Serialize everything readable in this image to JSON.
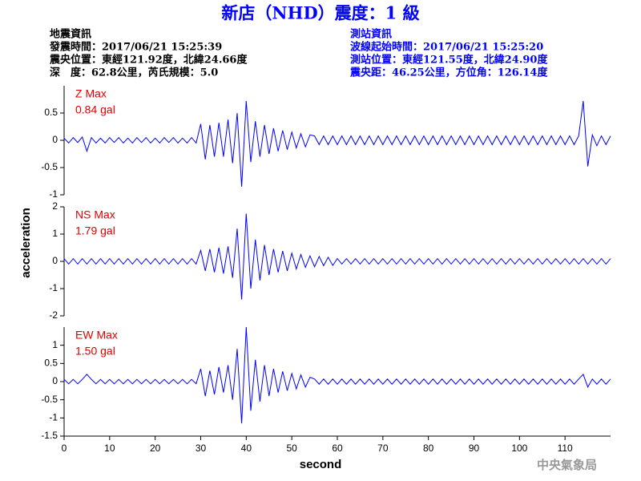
{
  "chart_data": {
    "type": "line",
    "title": "新店（NHD）震度：1 級",
    "left_info": [
      "地震資訊",
      "發震時間：2017/06/21 15:25:39",
      "震央位置：東經121.92度，北緯24.66度",
      "深　度：62.8公里，芮氏規模：5.0"
    ],
    "right_info": [
      "測站資訊",
      "波線起始時間：2017/06/21 15:25:20",
      "測站位置：東經121.55度，北緯24.90度",
      "震央距：46.25公里，方位角：126.14度"
    ],
    "xlabel": "second",
    "ylabel": "acceleration",
    "footer": "中央氣象局",
    "xlim": [
      0,
      120
    ],
    "xticks": [
      0,
      10,
      20,
      30,
      40,
      50,
      60,
      70,
      80,
      90,
      100,
      110
    ],
    "x": [
      0,
      1,
      2,
      3,
      4,
      5,
      6,
      7,
      8,
      9,
      10,
      11,
      12,
      13,
      14,
      15,
      16,
      17,
      18,
      19,
      20,
      21,
      22,
      23,
      24,
      25,
      26,
      27,
      28,
      29,
      30,
      31,
      32,
      33,
      34,
      35,
      36,
      37,
      38,
      39,
      40,
      41,
      42,
      43,
      44,
      45,
      46,
      47,
      48,
      49,
      50,
      51,
      52,
      53,
      54,
      55,
      56,
      57,
      58,
      59,
      60,
      61,
      62,
      63,
      64,
      65,
      66,
      67,
      68,
      69,
      70,
      71,
      72,
      73,
      74,
      75,
      76,
      77,
      78,
      79,
      80,
      81,
      82,
      83,
      84,
      85,
      86,
      87,
      88,
      89,
      90,
      91,
      92,
      93,
      94,
      95,
      96,
      97,
      98,
      99,
      100,
      101,
      102,
      103,
      104,
      105,
      106,
      107,
      108,
      109,
      110,
      111,
      112,
      113,
      114,
      115,
      116,
      117,
      118,
      119,
      120
    ],
    "series": [
      {
        "name": "Z Max",
        "max_label": "0.84 gal",
        "color": "#0000ff",
        "label_color": "#e00000",
        "ylim": [
          -1,
          1
        ],
        "yticks": [
          -1,
          -0.5,
          0,
          0.5
        ],
        "values": [
          0.04,
          -0.05,
          0.05,
          -0.04,
          0.06,
          -0.2,
          0.05,
          -0.05,
          0.04,
          -0.05,
          0.05,
          -0.04,
          0.05,
          -0.05,
          0.04,
          -0.05,
          0.05,
          -0.04,
          0.05,
          -0.05,
          0.04,
          -0.05,
          0.05,
          -0.04,
          0.05,
          -0.05,
          0.04,
          -0.05,
          0.05,
          -0.05,
          0.3,
          -0.35,
          0.28,
          -0.3,
          0.32,
          -0.3,
          0.38,
          -0.42,
          0.5,
          -0.85,
          0.72,
          -0.4,
          0.35,
          -0.3,
          0.28,
          -0.25,
          0.22,
          -0.2,
          0.18,
          -0.17,
          0.15,
          -0.14,
          0.12,
          -0.12,
          0.1,
          0.08,
          -0.08,
          0.08,
          -0.08,
          0.08,
          -0.08,
          0.08,
          -0.08,
          0.08,
          -0.08,
          0.08,
          -0.08,
          0.08,
          -0.08,
          0.08,
          -0.08,
          0.08,
          -0.08,
          0.08,
          -0.08,
          0.08,
          -0.08,
          0.08,
          -0.08,
          0.08,
          -0.08,
          0.08,
          -0.08,
          0.08,
          -0.08,
          0.08,
          -0.08,
          0.08,
          -0.08,
          0.08,
          -0.08,
          0.08,
          -0.08,
          0.08,
          -0.08,
          0.08,
          -0.08,
          0.08,
          -0.08,
          0.08,
          -0.08,
          0.08,
          -0.08,
          0.08,
          -0.08,
          0.08,
          -0.08,
          0.08,
          -0.08,
          0.08,
          -0.08,
          0.08,
          -0.08,
          0.08,
          0.72,
          -0.48,
          0.1,
          -0.1,
          0.08,
          -0.08,
          0.08
        ]
      },
      {
        "name": "NS Max",
        "max_label": "1.79 gal",
        "color": "#0000ff",
        "label_color": "#e00000",
        "ylim": [
          -2,
          2
        ],
        "yticks": [
          -2,
          -1,
          0,
          1,
          2
        ],
        "values": [
          0.1,
          -0.1,
          0.1,
          -0.1,
          0.1,
          -0.1,
          0.1,
          -0.1,
          0.1,
          -0.1,
          0.1,
          -0.1,
          0.1,
          -0.1,
          0.1,
          -0.1,
          0.1,
          -0.1,
          0.1,
          -0.1,
          0.1,
          -0.1,
          0.1,
          -0.1,
          0.1,
          -0.1,
          0.1,
          -0.1,
          0.1,
          -0.1,
          0.4,
          -0.35,
          0.45,
          -0.4,
          0.5,
          -0.45,
          0.55,
          -0.6,
          1.2,
          -1.4,
          1.75,
          -1.0,
          0.8,
          -0.7,
          0.6,
          -0.5,
          0.45,
          -0.4,
          0.38,
          -0.35,
          0.3,
          -0.28,
          0.25,
          -0.22,
          0.2,
          -0.2,
          0.18,
          -0.16,
          0.15,
          -0.15,
          0.1,
          -0.1,
          0.1,
          -0.1,
          0.1,
          -0.1,
          0.1,
          -0.1,
          0.1,
          -0.1,
          0.1,
          -0.1,
          0.1,
          -0.1,
          0.1,
          -0.1,
          0.1,
          -0.1,
          0.1,
          -0.1,
          0.1,
          -0.1,
          0.1,
          -0.1,
          0.1,
          -0.1,
          0.1,
          -0.1,
          0.1,
          -0.1,
          0.1,
          -0.1,
          0.1,
          -0.1,
          0.1,
          -0.1,
          0.1,
          -0.1,
          0.1,
          -0.1,
          0.1,
          -0.1,
          0.1,
          -0.1,
          0.1,
          -0.1,
          0.1,
          -0.1,
          0.1,
          -0.1,
          0.1,
          -0.1,
          0.1,
          -0.1,
          0.1,
          -0.1,
          0.1,
          -0.1,
          0.1,
          -0.1,
          0.1
        ]
      },
      {
        "name": "EW Max",
        "max_label": "1.50 gal",
        "color": "#0000ff",
        "label_color": "#e00000",
        "ylim": [
          -1.5,
          1.5
        ],
        "yticks": [
          -1.5,
          -1,
          -0.5,
          0,
          0.5,
          1
        ],
        "values": [
          0.06,
          -0.06,
          0.06,
          -0.06,
          0.06,
          0.2,
          0.06,
          -0.06,
          0.06,
          -0.06,
          0.06,
          -0.06,
          0.06,
          -0.06,
          0.06,
          -0.06,
          0.06,
          -0.06,
          0.06,
          -0.06,
          0.06,
          -0.06,
          0.06,
          -0.06,
          0.06,
          -0.06,
          0.06,
          -0.06,
          0.06,
          -0.06,
          0.35,
          -0.4,
          0.3,
          -0.35,
          0.4,
          -0.3,
          0.45,
          -0.5,
          0.9,
          -1.15,
          1.5,
          -0.8,
          0.6,
          -0.55,
          0.45,
          -0.4,
          0.35,
          -0.3,
          0.28,
          -0.25,
          0.22,
          -0.2,
          0.18,
          -0.15,
          0.12,
          0.07,
          -0.07,
          0.07,
          -0.07,
          0.07,
          -0.07,
          0.07,
          -0.07,
          0.07,
          -0.07,
          0.07,
          -0.07,
          0.07,
          -0.07,
          0.07,
          -0.07,
          0.07,
          -0.07,
          0.07,
          -0.07,
          0.07,
          -0.07,
          0.07,
          -0.07,
          0.07,
          -0.07,
          0.07,
          -0.07,
          0.07,
          -0.07,
          0.07,
          -0.07,
          0.07,
          -0.07,
          0.07,
          -0.07,
          0.07,
          -0.07,
          0.07,
          -0.07,
          0.07,
          -0.07,
          0.07,
          -0.07,
          0.07,
          -0.07,
          0.07,
          -0.07,
          0.07,
          -0.07,
          0.07,
          -0.07,
          0.07,
          -0.07,
          0.07,
          -0.07,
          0.07,
          -0.07,
          0.07,
          0.2,
          -0.15,
          0.07,
          -0.07,
          0.07,
          -0.07,
          0.07
        ]
      }
    ]
  }
}
